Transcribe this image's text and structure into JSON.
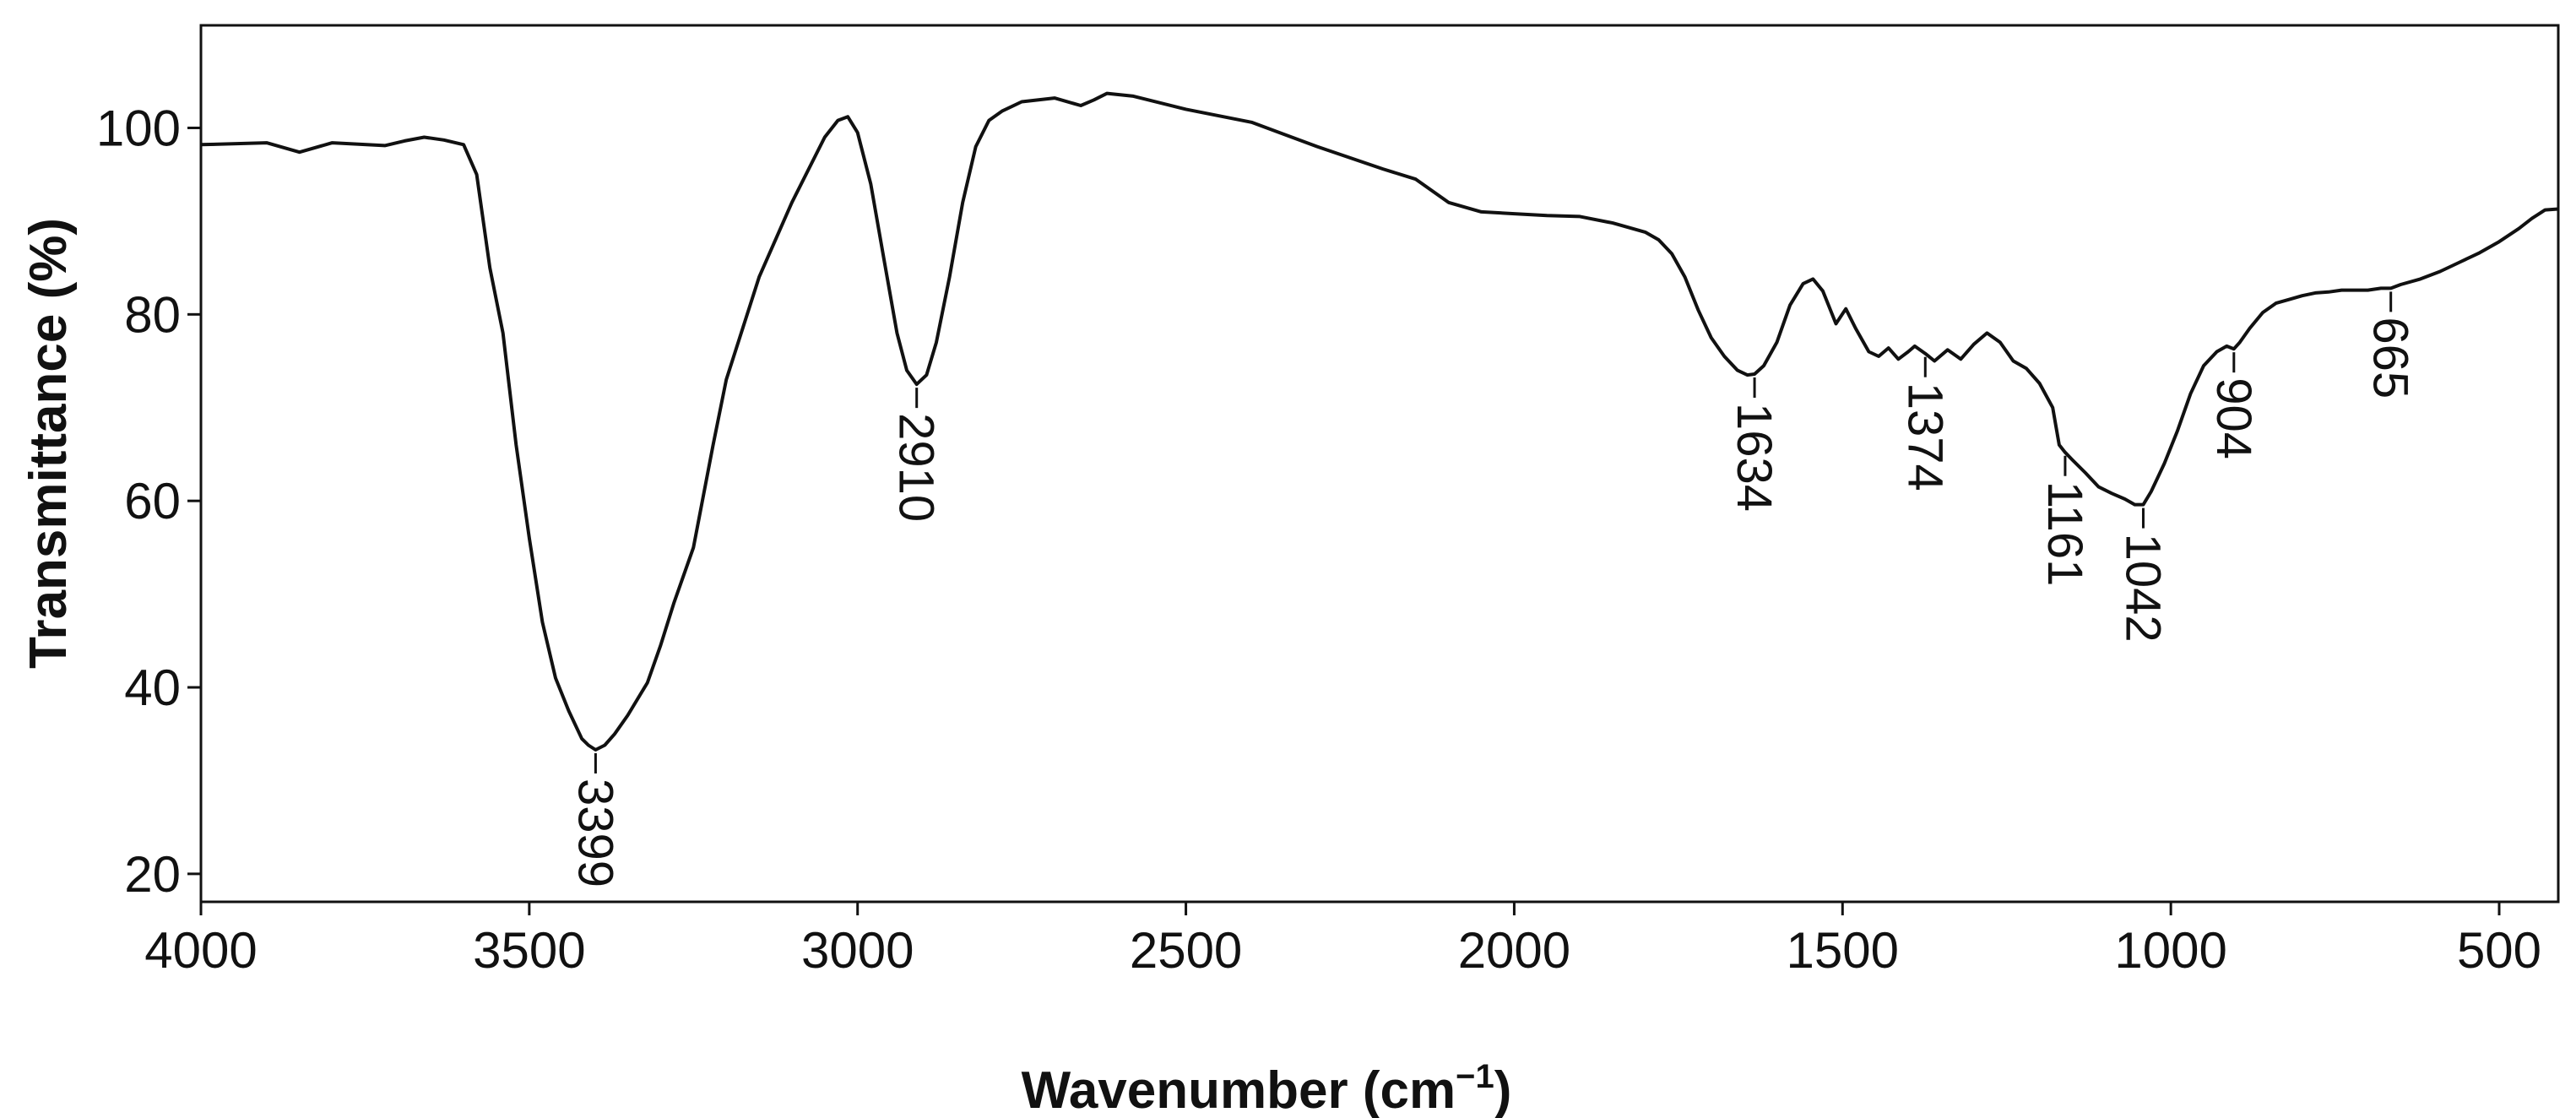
{
  "chart_data": {
    "type": "line",
    "title": "",
    "xlabel": "Wavenumber (cm",
    "xlabel_sup": "−1",
    "xlabel_close": ")",
    "ylabel": "Transmittance (%)",
    "xlim": [
      4000,
      410
    ],
    "ylim": [
      17,
      111
    ],
    "x_reversed": true,
    "grid": false,
    "line_color": "#111111",
    "xticks": [
      4000,
      3500,
      3000,
      2500,
      2000,
      1500,
      1000,
      500
    ],
    "xtick_labels": [
      "4000",
      "3500",
      "3000",
      "2500",
      "2000",
      "1500",
      "1000",
      "500"
    ],
    "yticks": [
      20,
      40,
      60,
      80,
      100
    ],
    "ytick_labels": [
      "20",
      "40",
      "60",
      "80",
      "100"
    ],
    "series": [
      {
        "x": [
          4000,
          3900,
          3850,
          3800,
          3720,
          3690,
          3660,
          3630,
          3600,
          3580,
          3560,
          3540,
          3520,
          3500,
          3480,
          3460,
          3440,
          3420,
          3410,
          3399,
          3385,
          3370,
          3350,
          3320,
          3300,
          3280,
          3250,
          3220,
          3200,
          3150,
          3100,
          3050,
          3030,
          3015,
          3000,
          2980,
          2960,
          2940,
          2925,
          2910,
          2895,
          2880,
          2860,
          2840,
          2820,
          2800,
          2780,
          2750,
          2700,
          2660,
          2640,
          2620,
          2580,
          2500,
          2400,
          2300,
          2200,
          2150,
          2100,
          2050,
          2000,
          1950,
          1900,
          1850,
          1800,
          1780,
          1760,
          1740,
          1720,
          1700,
          1680,
          1660,
          1645,
          1634,
          1620,
          1600,
          1580,
          1560,
          1545,
          1530,
          1510,
          1495,
          1480,
          1460,
          1445,
          1430,
          1415,
          1400,
          1390,
          1374,
          1360,
          1340,
          1320,
          1300,
          1280,
          1260,
          1240,
          1220,
          1200,
          1180,
          1170,
          1161,
          1150,
          1130,
          1110,
          1090,
          1070,
          1055,
          1042,
          1030,
          1010,
          990,
          970,
          950,
          930,
          915,
          904,
          895,
          880,
          860,
          840,
          820,
          800,
          780,
          760,
          740,
          720,
          700,
          680,
          665,
          650,
          620,
          590,
          560,
          530,
          500,
          470,
          450,
          430,
          410
        ],
        "y": [
          98.2,
          98.4,
          97.4,
          98.4,
          98.1,
          98.6,
          99.0,
          98.7,
          98.2,
          95.0,
          85.0,
          78.0,
          66.0,
          56.0,
          47.0,
          41.0,
          37.5,
          34.5,
          33.8,
          33.3,
          33.8,
          35.0,
          37.0,
          40.5,
          44.5,
          49.0,
          55.0,
          66.0,
          73.0,
          84.0,
          92.0,
          99.0,
          100.8,
          101.2,
          99.5,
          94.0,
          86.0,
          78.0,
          74.0,
          72.5,
          73.5,
          77.0,
          84.0,
          92.0,
          98.0,
          100.8,
          101.8,
          102.8,
          103.2,
          102.4,
          103.0,
          103.7,
          103.4,
          102.0,
          100.6,
          98.0,
          95.6,
          94.5,
          92.0,
          91.0,
          90.8,
          90.6,
          90.5,
          89.8,
          88.8,
          88.0,
          86.5,
          84.0,
          80.5,
          77.5,
          75.5,
          74.0,
          73.5,
          73.6,
          74.5,
          77.0,
          81.0,
          83.3,
          83.8,
          82.5,
          79.0,
          80.6,
          78.5,
          76.0,
          75.5,
          76.4,
          75.2,
          76.0,
          76.6,
          75.8,
          75.0,
          76.2,
          75.2,
          76.8,
          78.0,
          77.0,
          75.0,
          74.2,
          72.6,
          70.0,
          66.0,
          65.2,
          64.4,
          63.0,
          61.5,
          60.8,
          60.2,
          59.6,
          59.6,
          61.0,
          64.0,
          67.5,
          71.5,
          74.5,
          76.0,
          76.6,
          76.3,
          77.0,
          78.5,
          80.2,
          81.2,
          81.6,
          82.0,
          82.3,
          82.4,
          82.6,
          82.6,
          82.6,
          82.8,
          82.8,
          83.2,
          83.8,
          84.6,
          85.6,
          86.6,
          87.8,
          89.2,
          90.3,
          91.2,
          91.3
        ]
      }
    ],
    "annotations": [
      {
        "x": 3399,
        "y": 33.3,
        "label": "3399"
      },
      {
        "x": 2910,
        "y": 72.5,
        "label": "2910"
      },
      {
        "x": 1634,
        "y": 73.6,
        "label": "1634"
      },
      {
        "x": 1374,
        "y": 75.8,
        "label": "1374"
      },
      {
        "x": 1161,
        "y": 65.2,
        "label": "1161"
      },
      {
        "x": 1042,
        "y": 59.6,
        "label": "1042"
      },
      {
        "x": 904,
        "y": 76.3,
        "label": "904"
      },
      {
        "x": 665,
        "y": 82.8,
        "label": "665"
      }
    ]
  }
}
